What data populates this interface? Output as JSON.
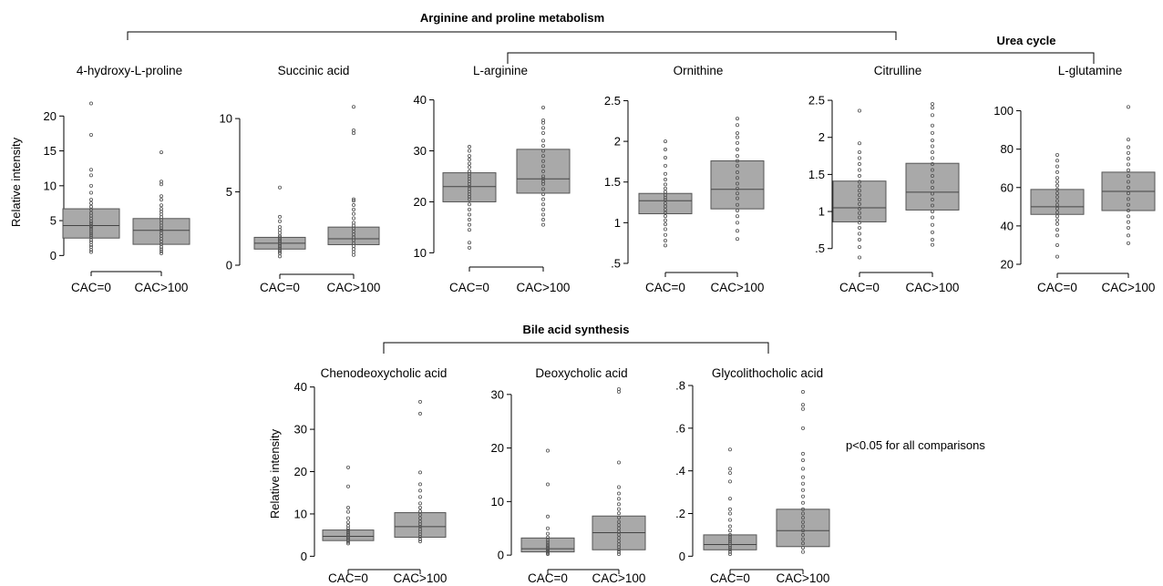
{
  "groups": [
    {
      "label": "Arginine and proline metabolism"
    },
    {
      "label": "Urea cycle"
    },
    {
      "label": "Bile acid synthesis"
    }
  ],
  "ylabel": "Relative intensity",
  "note": "p<0.05 for all comparisons",
  "chart_data": [
    {
      "type": "box",
      "title": "4-hydroxy-L-proline",
      "ylabel": "Relative intensity",
      "categories": [
        "CAC=0",
        "CAC>100"
      ],
      "yticks": [
        0,
        5,
        10,
        15,
        20
      ],
      "ytick_labels": [
        "0",
        "5",
        "10",
        "15",
        "20"
      ],
      "ylim": [
        -1,
        22
      ],
      "boxes": [
        {
          "q1": 2.5,
          "median": 4.3,
          "q3": 6.7
        },
        {
          "q1": 1.6,
          "median": 3.6,
          "q3": 5.3
        }
      ],
      "points": [
        [
          0.5,
          0.8,
          1.2,
          1.5,
          1.9,
          2.2,
          2.6,
          2.9,
          3.2,
          3.5,
          3.8,
          4.1,
          4.3,
          4.6,
          4.9,
          5.3,
          5.7,
          6.1,
          6.6,
          7.0,
          7.5,
          8.0,
          9.0,
          10.0,
          11.5,
          12.3,
          17.3,
          21.8
        ],
        [
          0.3,
          0.6,
          0.9,
          1.2,
          1.6,
          2.0,
          2.4,
          2.8,
          3.2,
          3.6,
          3.9,
          4.3,
          4.7,
          5.1,
          5.5,
          5.9,
          6.3,
          6.7,
          7.2,
          8.0,
          8.5,
          10.2,
          10.6,
          14.8
        ]
      ]
    },
    {
      "type": "box",
      "title": "Succinic acid",
      "categories": [
        "CAC=0",
        "CAC>100"
      ],
      "yticks": [
        0,
        5,
        10
      ],
      "ytick_labels": [
        "0",
        "5",
        "10"
      ],
      "ylim": [
        0,
        11
      ],
      "boxes": [
        {
          "q1": 1.1,
          "median": 1.5,
          "q3": 1.9
        },
        {
          "q1": 1.4,
          "median": 1.8,
          "q3": 2.6
        }
      ],
      "points": [
        [
          0.6,
          0.8,
          0.9,
          1.0,
          1.1,
          1.2,
          1.3,
          1.4,
          1.5,
          1.6,
          1.7,
          1.8,
          1.9,
          2.0,
          2.2,
          2.4,
          2.6,
          3.0,
          3.3,
          5.3
        ],
        [
          0.7,
          0.9,
          1.1,
          1.3,
          1.5,
          1.7,
          1.9,
          2.1,
          2.3,
          2.5,
          2.7,
          2.9,
          3.2,
          3.5,
          3.8,
          4.1,
          4.4,
          4.5,
          9.0,
          9.2,
          10.8
        ]
      ]
    },
    {
      "type": "box",
      "title": "L-arginine",
      "categories": [
        "CAC=0",
        "CAC>100"
      ],
      "yticks": [
        10,
        20,
        30,
        40
      ],
      "ytick_labels": [
        "10",
        "20",
        "30",
        "40"
      ],
      "ylim": [
        9,
        41
      ],
      "boxes": [
        {
          "q1": 20.0,
          "median": 23.0,
          "q3": 25.7
        },
        {
          "q1": 21.7,
          "median": 24.5,
          "q3": 30.3
        }
      ],
      "points": [
        [
          11.0,
          12.0,
          14.5,
          15.5,
          16.5,
          17.5,
          18.5,
          19.5,
          20.5,
          21.0,
          21.5,
          22.0,
          22.5,
          23.0,
          23.5,
          24.0,
          24.5,
          25.0,
          25.5,
          26.0,
          26.8,
          27.5,
          28.3,
          29.0,
          30.0,
          30.8
        ],
        [
          15.5,
          16.5,
          17.5,
          18.5,
          19.5,
          20.5,
          21.5,
          22.5,
          23.5,
          24.0,
          24.5,
          25.0,
          26.0,
          27.0,
          28.0,
          29.0,
          30.0,
          31.0,
          32.0,
          33.5,
          34.5,
          35.5,
          36.0,
          38.5
        ]
      ]
    },
    {
      "type": "box",
      "title": "Ornithine",
      "categories": [
        "CAC=0",
        "CAC>100"
      ],
      "yticks": [
        0.5,
        1,
        1.5,
        2,
        2.5
      ],
      "ytick_labels": [
        ".5",
        "1",
        "1.5",
        "2",
        "2.5"
      ],
      "ylim": [
        0.5,
        2.55
      ],
      "boxes": [
        {
          "q1": 1.11,
          "median": 1.27,
          "q3": 1.36
        },
        {
          "q1": 1.17,
          "median": 1.41,
          "q3": 1.76
        }
      ],
      "points": [
        [
          0.72,
          0.78,
          0.85,
          0.92,
          0.98,
          1.03,
          1.08,
          1.12,
          1.16,
          1.2,
          1.24,
          1.28,
          1.31,
          1.34,
          1.38,
          1.42,
          1.47,
          1.53,
          1.6,
          1.7,
          1.8,
          1.9,
          2.0
        ],
        [
          0.8,
          0.9,
          1.0,
          1.08,
          1.15,
          1.22,
          1.3,
          1.36,
          1.42,
          1.48,
          1.55,
          1.62,
          1.7,
          1.76,
          1.82,
          1.9,
          1.98,
          2.05,
          2.1,
          2.2,
          2.28
        ]
      ]
    },
    {
      "type": "box",
      "title": "Citrulline",
      "categories": [
        "CAC=0",
        "CAC>100"
      ],
      "yticks": [
        0.5,
        1,
        1.5,
        2,
        2.5
      ],
      "ytick_labels": [
        ".5",
        "1",
        "1.5",
        "2",
        "2.5"
      ],
      "ylim": [
        0.3,
        2.55
      ],
      "boxes": [
        {
          "q1": 0.86,
          "median": 1.05,
          "q3": 1.41
        },
        {
          "q1": 1.02,
          "median": 1.26,
          "q3": 1.65
        }
      ],
      "points": [
        [
          0.38,
          0.52,
          0.62,
          0.7,
          0.78,
          0.85,
          0.92,
          0.98,
          1.04,
          1.1,
          1.16,
          1.22,
          1.28,
          1.34,
          1.4,
          1.48,
          1.56,
          1.64,
          1.72,
          1.8,
          1.92,
          2.36
        ],
        [
          0.55,
          0.62,
          0.72,
          0.82,
          0.92,
          1.0,
          1.08,
          1.16,
          1.24,
          1.32,
          1.4,
          1.48,
          1.56,
          1.64,
          1.72,
          1.8,
          1.88,
          1.96,
          2.06,
          2.16,
          2.3,
          2.4,
          2.45
        ]
      ]
    },
    {
      "type": "box",
      "title": "L-glutamine",
      "categories": [
        "CAC=0",
        "CAC>100"
      ],
      "yticks": [
        20,
        40,
        60,
        80,
        100
      ],
      "ytick_labels": [
        "20",
        "40",
        "60",
        "80",
        "100"
      ],
      "ylim": [
        20,
        105
      ],
      "boxes": [
        {
          "q1": 46,
          "median": 50,
          "q3": 59
        },
        {
          "q1": 48,
          "median": 58,
          "q3": 68
        }
      ],
      "points": [
        [
          24,
          30,
          35,
          38,
          41,
          43,
          45,
          47,
          49,
          51,
          53,
          55,
          57,
          59,
          61,
          63,
          65,
          68,
          71,
          74,
          77
        ],
        [
          31,
          35,
          39,
          42,
          45,
          48,
          51,
          54,
          57,
          60,
          63,
          66,
          69,
          72,
          75,
          78,
          81,
          85,
          102
        ]
      ]
    },
    {
      "type": "box",
      "title": "Chenodeoxycholic acid",
      "ylabel": "Relative intensity",
      "categories": [
        "CAC=0",
        "CAC>100"
      ],
      "yticks": [
        0,
        10,
        20,
        30,
        40
      ],
      "ytick_labels": [
        "0",
        "10",
        "20",
        "30",
        "40"
      ],
      "ylim": [
        -1,
        41
      ],
      "boxes": [
        {
          "q1": 3.7,
          "median": 4.7,
          "q3": 6.2
        },
        {
          "q1": 4.5,
          "median": 7.0,
          "q3": 10.3
        }
      ],
      "points": [
        [
          3.0,
          3.4,
          3.8,
          4.1,
          4.4,
          4.7,
          5.0,
          5.3,
          5.7,
          6.1,
          6.6,
          7.2,
          8.0,
          9.0,
          10.5,
          11.5,
          16.5,
          21.0
        ],
        [
          3.5,
          4.0,
          4.6,
          5.2,
          5.8,
          6.4,
          7.0,
          7.6,
          8.2,
          9.0,
          9.8,
          10.6,
          11.5,
          12.5,
          14.0,
          15.5,
          17.0,
          19.8,
          33.7,
          36.5
        ]
      ]
    },
    {
      "type": "box",
      "title": "Deoxycholic acid",
      "categories": [
        "CAC=0",
        "CAC>100"
      ],
      "yticks": [
        0,
        10,
        20,
        30
      ],
      "ytick_labels": [
        "0",
        "10",
        "20",
        "30"
      ],
      "ylim": [
        -1,
        31.5
      ],
      "boxes": [
        {
          "q1": 0.6,
          "median": 1.2,
          "q3": 3.2
        },
        {
          "q1": 1.0,
          "median": 4.2,
          "q3": 7.3
        }
      ],
      "points": [
        [
          0.2,
          0.4,
          0.6,
          0.8,
          1.0,
          1.2,
          1.4,
          1.7,
          2.0,
          2.4,
          2.8,
          3.3,
          4.0,
          5.0,
          7.2,
          13.2,
          19.5
        ],
        [
          0.2,
          0.6,
          1.0,
          1.5,
          2.0,
          2.6,
          3.2,
          3.8,
          4.4,
          5.0,
          5.6,
          6.2,
          7.0,
          7.8,
          8.6,
          9.5,
          10.5,
          11.5,
          12.7,
          17.3,
          30.5,
          31.0
        ]
      ]
    },
    {
      "type": "box",
      "title": "Glycolithocholic acid",
      "categories": [
        "CAC=0",
        "CAC>100"
      ],
      "yticks": [
        0,
        0.2,
        0.4,
        0.6,
        0.8
      ],
      "ytick_labels": [
        "0",
        ".2",
        ".4",
        ".6",
        ".8"
      ],
      "ylim": [
        -0.02,
        0.8
      ],
      "boxes": [
        {
          "q1": 0.03,
          "median": 0.055,
          "q3": 0.1
        },
        {
          "q1": 0.045,
          "median": 0.12,
          "q3": 0.22
        }
      ],
      "points": [
        [
          0.01,
          0.02,
          0.03,
          0.04,
          0.05,
          0.06,
          0.07,
          0.08,
          0.09,
          0.1,
          0.12,
          0.14,
          0.17,
          0.2,
          0.22,
          0.27,
          0.35,
          0.39,
          0.41,
          0.5
        ],
        [
          0.02,
          0.04,
          0.06,
          0.08,
          0.1,
          0.12,
          0.14,
          0.16,
          0.18,
          0.2,
          0.22,
          0.25,
          0.28,
          0.31,
          0.34,
          0.37,
          0.41,
          0.45,
          0.48,
          0.6,
          0.69,
          0.71,
          0.77
        ]
      ]
    }
  ]
}
